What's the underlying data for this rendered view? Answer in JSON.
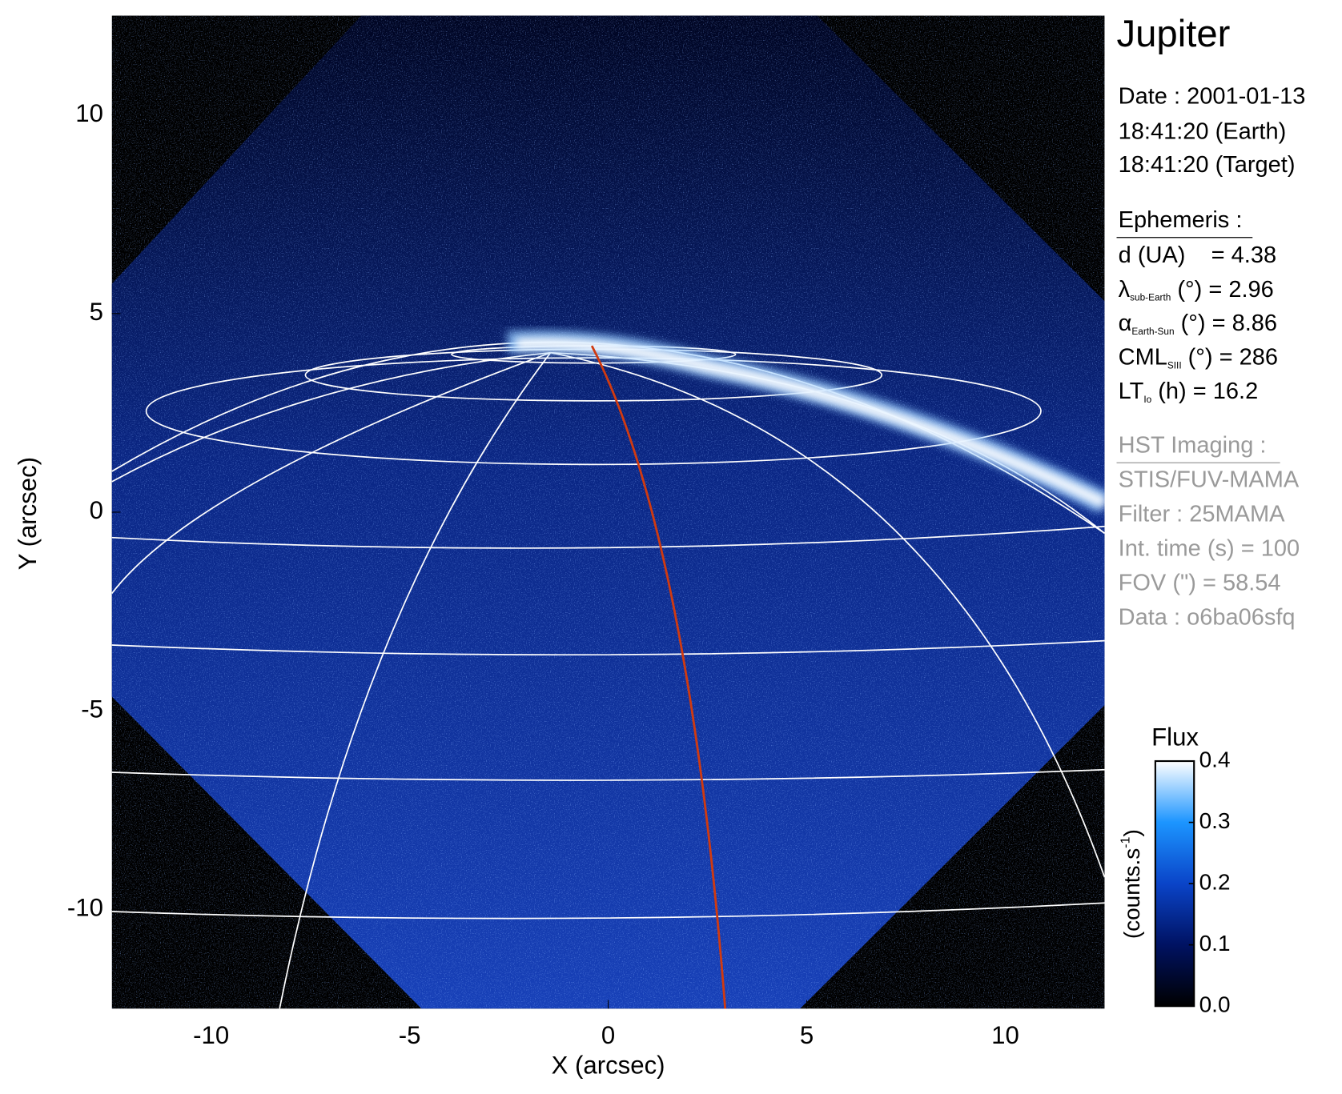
{
  "chart_data": {
    "type": "image",
    "xlabel": "X (arcsec)",
    "ylabel": "Y (arcsec)",
    "xlim": [
      -12.5,
      12.5
    ],
    "ylim": [
      -12.5,
      12.5
    ],
    "xticks": [
      -10,
      -5,
      0,
      5,
      10
    ],
    "yticks": [
      -10,
      -5,
      0,
      5,
      10
    ],
    "colorbar": {
      "title": "Flux",
      "label": "(counts.s",
      "label_sup": "-1",
      "label_end": ")",
      "lim": [
        0,
        0.4
      ],
      "ticks": [
        {
          "value": 0,
          "label": "0.0"
        },
        0.1,
        0.2,
        0.3,
        0.4
      ],
      "colors": [
        "#000000",
        "#001262",
        "#0a44c8",
        "#1c95ff",
        "#ffffff"
      ]
    }
  },
  "info": {
    "title": "Jupiter",
    "date": [
      "Date : 2001-01-13",
      "18:41:20 (Earth)",
      "18:41:20 (Target)"
    ],
    "ephemeris": {
      "heading": "Ephemeris :",
      "lines": [
        {
          "text": "d (UA)    = 4.38"
        },
        {
          "main": "λ",
          "sub": "sub-Earth",
          "rest": " (°) = 2.96"
        },
        {
          "main": "α",
          "sub": "Earth-Sun",
          "rest": " (°) = 8.86"
        },
        {
          "main": "CML",
          "sub": "SIII",
          "rest": " (°) = 286"
        },
        {
          "main": "LT",
          "sub": "Io",
          "rest": " (h) = 16.2"
        }
      ]
    },
    "imaging": {
      "heading": "HST Imaging :",
      "lines": [
        "STIS/FUV-MAMA",
        "Filter : 25MAMA",
        "Int. time (s) = 100",
        "FOV (\") = 58.54",
        "Data : o6ba06sfq"
      ]
    }
  }
}
